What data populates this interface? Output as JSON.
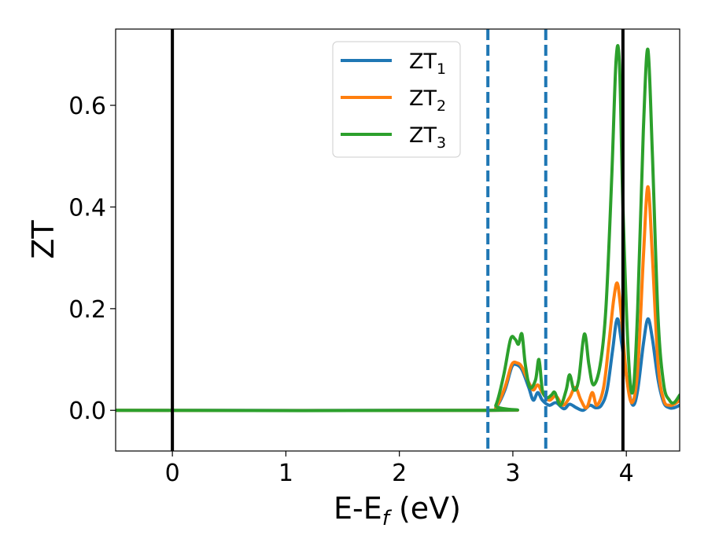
{
  "chart_data": {
    "type": "line",
    "xlabel": "E-E",
    "xlabel_sub": "f",
    "xlabel_unit": " (eV)",
    "ylabel": "ZT",
    "xlim": [
      -0.5,
      4.47
    ],
    "ylim": [
      -0.08,
      0.75
    ],
    "xticks": [
      0,
      1,
      2,
      3,
      4
    ],
    "xtick_labels": [
      "0",
      "1",
      "2",
      "3",
      "4"
    ],
    "yticks": [
      0.0,
      0.2,
      0.4,
      0.6
    ],
    "ytick_labels": [
      "0.0",
      "0.2",
      "0.4",
      "0.6"
    ],
    "grid": false,
    "legend_position": "top-center",
    "vertical_lines": [
      {
        "x": 0.0,
        "style": "solid",
        "color": "#000000"
      },
      {
        "x": 3.97,
        "style": "solid",
        "color": "#000000"
      },
      {
        "x": 2.78,
        "style": "dashed",
        "color": "#1f77b4"
      },
      {
        "x": 3.29,
        "style": "dashed",
        "color": "#1f77b4"
      }
    ],
    "series": [
      {
        "name": "ZT",
        "sub": "1",
        "color": "#1f77b4",
        "points": [
          [
            -0.5,
            0.0
          ],
          [
            2.78,
            0.0
          ],
          [
            2.85,
            0.005
          ],
          [
            2.93,
            0.04
          ],
          [
            2.99,
            0.085
          ],
          [
            3.03,
            0.09
          ],
          [
            3.08,
            0.08
          ],
          [
            3.14,
            0.045
          ],
          [
            3.18,
            0.02
          ],
          [
            3.22,
            0.035
          ],
          [
            3.26,
            0.02
          ],
          [
            3.32,
            0.01
          ],
          [
            3.38,
            0.015
          ],
          [
            3.45,
            0.003
          ],
          [
            3.5,
            0.012
          ],
          [
            3.56,
            0.005
          ],
          [
            3.62,
            0.0
          ],
          [
            3.68,
            0.01
          ],
          [
            3.73,
            0.005
          ],
          [
            3.78,
            0.01
          ],
          [
            3.83,
            0.04
          ],
          [
            3.88,
            0.12
          ],
          [
            3.92,
            0.18
          ],
          [
            3.96,
            0.13
          ],
          [
            4.02,
            0.04
          ],
          [
            4.06,
            0.01
          ],
          [
            4.1,
            0.04
          ],
          [
            4.15,
            0.13
          ],
          [
            4.19,
            0.18
          ],
          [
            4.23,
            0.14
          ],
          [
            4.28,
            0.06
          ],
          [
            4.33,
            0.015
          ],
          [
            4.38,
            0.005
          ],
          [
            4.42,
            0.005
          ],
          [
            4.47,
            0.01
          ]
        ]
      },
      {
        "name": "ZT",
        "sub": "2",
        "color": "#ff7f0e",
        "points": [
          [
            -0.5,
            0.0
          ],
          [
            2.78,
            0.0
          ],
          [
            2.85,
            0.006
          ],
          [
            2.93,
            0.045
          ],
          [
            2.99,
            0.09
          ],
          [
            3.04,
            0.093
          ],
          [
            3.08,
            0.085
          ],
          [
            3.14,
            0.055
          ],
          [
            3.18,
            0.04
          ],
          [
            3.22,
            0.05
          ],
          [
            3.26,
            0.035
          ],
          [
            3.32,
            0.02
          ],
          [
            3.38,
            0.028
          ],
          [
            3.44,
            0.01
          ],
          [
            3.5,
            0.025
          ],
          [
            3.55,
            0.045
          ],
          [
            3.6,
            0.02
          ],
          [
            3.65,
            0.005
          ],
          [
            3.7,
            0.035
          ],
          [
            3.74,
            0.01
          ],
          [
            3.8,
            0.045
          ],
          [
            3.85,
            0.14
          ],
          [
            3.89,
            0.22
          ],
          [
            3.92,
            0.25
          ],
          [
            3.95,
            0.2
          ],
          [
            4.0,
            0.07
          ],
          [
            4.05,
            0.015
          ],
          [
            4.1,
            0.08
          ],
          [
            4.15,
            0.3
          ],
          [
            4.19,
            0.44
          ],
          [
            4.23,
            0.3
          ],
          [
            4.28,
            0.09
          ],
          [
            4.33,
            0.02
          ],
          [
            4.38,
            0.01
          ],
          [
            4.42,
            0.012
          ],
          [
            4.47,
            0.02
          ]
        ]
      },
      {
        "name": "ZT",
        "sub": "3",
        "color": "#2ca02c",
        "points": [
          [
            -0.5,
            0.0
          ],
          [
            2.78,
            0.0
          ],
          [
            2.85,
            0.01
          ],
          [
            2.92,
            0.07
          ],
          [
            2.98,
            0.14
          ],
          [
            3.02,
            0.14
          ],
          [
            3.05,
            0.13
          ],
          [
            3.08,
            0.15
          ],
          [
            3.11,
            0.09
          ],
          [
            3.15,
            0.045
          ],
          [
            3.2,
            0.06
          ],
          [
            3.23,
            0.1
          ],
          [
            3.26,
            0.04
          ],
          [
            3.3,
            0.025
          ],
          [
            3.34,
            0.03
          ],
          [
            3.37,
            0.035
          ],
          [
            3.42,
            0.01
          ],
          [
            3.47,
            0.04
          ],
          [
            3.5,
            0.07
          ],
          [
            3.54,
            0.04
          ],
          [
            3.58,
            0.06
          ],
          [
            3.63,
            0.15
          ],
          [
            3.67,
            0.09
          ],
          [
            3.71,
            0.05
          ],
          [
            3.77,
            0.09
          ],
          [
            3.82,
            0.2
          ],
          [
            3.87,
            0.45
          ],
          [
            3.91,
            0.69
          ],
          [
            3.94,
            0.68
          ],
          [
            3.97,
            0.4
          ],
          [
            4.02,
            0.1
          ],
          [
            4.06,
            0.04
          ],
          [
            4.1,
            0.2
          ],
          [
            4.15,
            0.55
          ],
          [
            4.19,
            0.71
          ],
          [
            4.23,
            0.5
          ],
          [
            4.28,
            0.18
          ],
          [
            4.33,
            0.05
          ],
          [
            4.38,
            0.02
          ],
          [
            4.42,
            0.015
          ],
          [
            4.47,
            0.03
          ]
        ]
      }
    ]
  }
}
